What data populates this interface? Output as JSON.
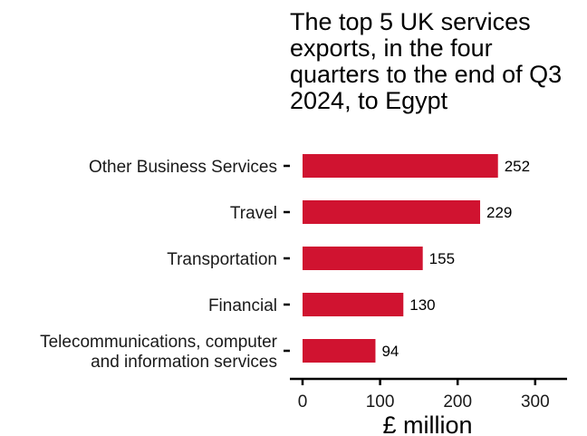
{
  "chart_data": {
    "type": "bar",
    "orientation": "horizontal",
    "title": "The top 5 UK services exports, in the four quarters to the end of Q3 2024, to Egypt",
    "xlabel": "£ million",
    "ylabel": "",
    "categories": [
      "Other Business Services",
      "Travel",
      "Transportation",
      "Financial",
      "Telecommunications, computer and information services"
    ],
    "category_lines": [
      [
        "Other Business Services"
      ],
      [
        "Travel"
      ],
      [
        "Transportation"
      ],
      [
        "Financial"
      ],
      [
        "Telecommunications, computer",
        "and information services"
      ]
    ],
    "values": [
      252,
      229,
      155,
      130,
      94
    ],
    "xlim": [
      0,
      340
    ],
    "xticks": [
      0,
      100,
      200,
      300
    ],
    "grid": false,
    "legend": "none",
    "bar_color": "#d01330"
  }
}
